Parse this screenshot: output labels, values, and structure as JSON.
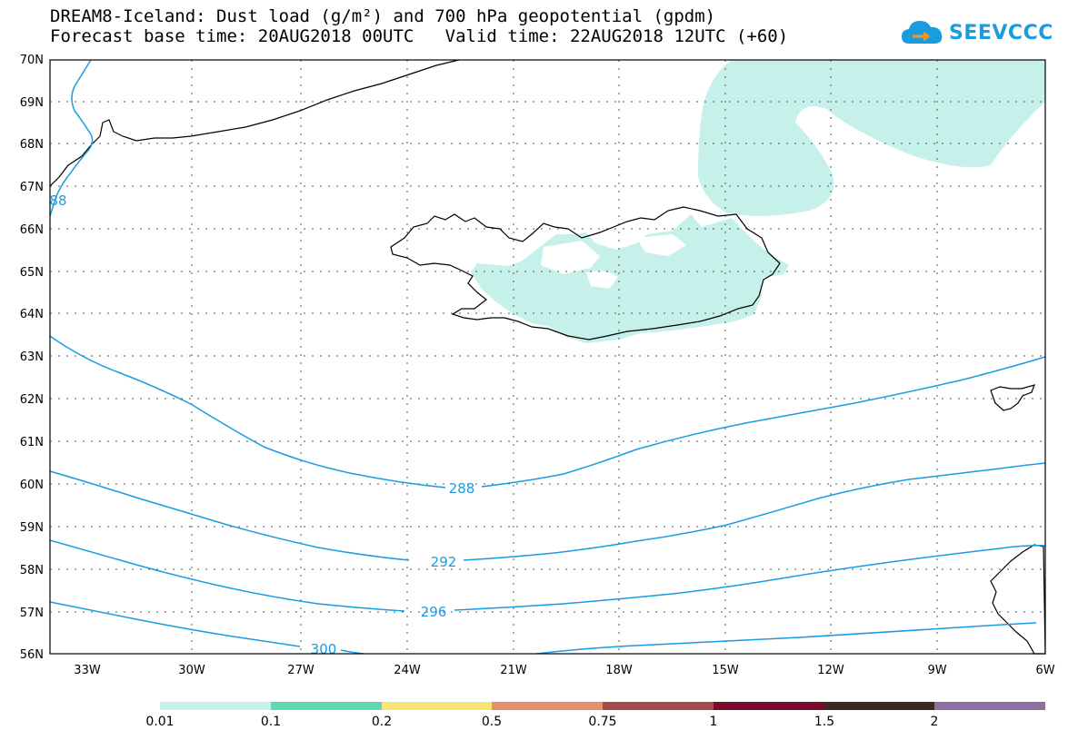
{
  "header": {
    "title_line1": "DREAM8-Iceland: Dust load (g/m²) and 700 hPa geopotential (gpdm)",
    "title_line2": "Forecast base time: 20AUG2018 00UTC   Valid time: 22AUG2018 12UTC (+60)"
  },
  "logo": {
    "text": "SEEVCCC",
    "icon": "cloud-icon"
  },
  "map": {
    "region": "Iceland",
    "lat_labels": [
      "70N",
      "69N",
      "68N",
      "67N",
      "66N",
      "65N",
      "64N",
      "63N",
      "62N",
      "61N",
      "60N",
      "59N",
      "58N",
      "57N",
      "56N"
    ],
    "lon_labels": [
      "33W",
      "30W",
      "27W",
      "24W",
      "21W",
      "18W",
      "15W",
      "12W",
      "9W",
      "6W"
    ],
    "dust_fill_color": "#c6f0ea",
    "contour_color": "#1a9ce0",
    "contour_labels": [
      "288",
      "292",
      "296",
      "300",
      "88"
    ]
  },
  "colorbar": {
    "colors": [
      "#c6f0ea",
      "#5ed9b4",
      "#f7e574",
      "#e8906a",
      "#a84a4a",
      "#7a0a2c",
      "#3a2a22",
      "#8e6fa0"
    ],
    "labels": [
      "0.01",
      "0.1",
      "0.2",
      "0.5",
      "0.75",
      "1",
      "1.5",
      "2"
    ]
  }
}
